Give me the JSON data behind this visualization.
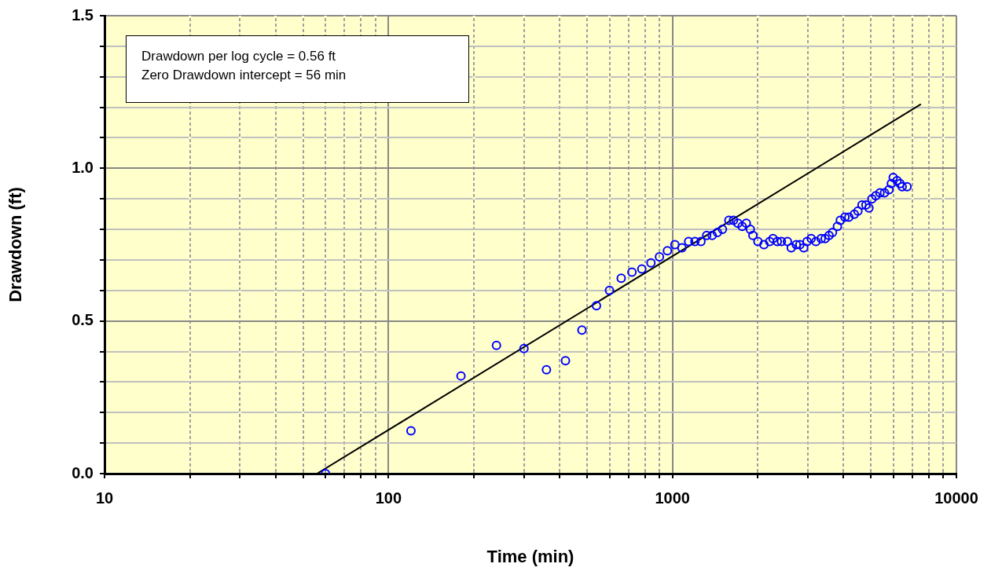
{
  "chart_data": {
    "type": "scatter",
    "xlabel": "Time (min)",
    "ylabel": "Drawdown (ft)",
    "annotations": [
      "Drawdown per log cycle = 0.56 ft",
      "Zero Drawdown intercept = 56 min"
    ],
    "log": "x",
    "grid": true,
    "legend": false,
    "xlim": [
      10,
      10000
    ],
    "ylim": [
      0,
      1.5
    ],
    "xticks": [
      10,
      {
        "value": 20,
        "label": null
      },
      {
        "value": 30,
        "label": null
      },
      {
        "value": 40,
        "label": null
      },
      {
        "value": 50,
        "label": null
      },
      {
        "value": 60,
        "label": null
      },
      {
        "value": 70,
        "label": null
      },
      {
        "value": 80,
        "label": null
      },
      {
        "value": 90,
        "label": null
      },
      100,
      {
        "value": 200,
        "label": null
      },
      {
        "value": 300,
        "label": null
      },
      {
        "value": 400,
        "label": null
      },
      {
        "value": 500,
        "label": null
      },
      {
        "value": 600,
        "label": null
      },
      {
        "value": 700,
        "label": null
      },
      {
        "value": 800,
        "label": null
      },
      {
        "value": 900,
        "label": null
      },
      1000,
      {
        "value": 2000,
        "label": null
      },
      {
        "value": 3000,
        "label": null
      },
      {
        "value": 4000,
        "label": null
      },
      {
        "value": 5000,
        "label": null
      },
      {
        "value": 6000,
        "label": null
      },
      {
        "value": 7000,
        "label": null
      },
      {
        "value": 8000,
        "label": null
      },
      {
        "value": 9000,
        "label": null
      },
      10000
    ],
    "yticks": [
      {
        "value": 0,
        "label": "0.0"
      },
      {
        "value": 0.1,
        "label": null
      },
      {
        "value": 0.2,
        "label": null
      },
      {
        "value": 0.3,
        "label": null
      },
      {
        "value": 0.4,
        "label": null
      },
      {
        "value": 0.5,
        "label": "0.5"
      },
      {
        "value": 0.6,
        "label": null
      },
      {
        "value": 0.7,
        "label": null
      },
      {
        "value": 0.8,
        "label": null
      },
      {
        "value": 0.9,
        "label": null
      },
      {
        "value": 1,
        "label": "1.0"
      },
      {
        "value": 1.1,
        "label": null
      },
      {
        "value": 1.2,
        "label": null
      },
      {
        "value": 1.3,
        "label": null
      },
      {
        "value": 1.4,
        "label": null
      },
      {
        "value": 1.5,
        "label": "1.5"
      }
    ],
    "series": [
      {
        "marker": "circle",
        "color": "#0000ff",
        "x": [
          60,
          120,
          180,
          240,
          300,
          360,
          420,
          480,
          540,
          600,
          660,
          720,
          780,
          840,
          900,
          960,
          1020,
          1080,
          1140,
          1200,
          1260,
          1320,
          1380,
          1440,
          1500,
          1580,
          1640,
          1700,
          1760,
          1820,
          1880,
          1920,
          2000,
          2100,
          2200,
          2260,
          2340,
          2420,
          2540,
          2620,
          2730,
          2810,
          2900,
          2980,
          3080,
          3200,
          3340,
          3450,
          3560,
          3660,
          3810,
          3900,
          4050,
          4180,
          4370,
          4500,
          4650,
          4800,
          4920,
          5040,
          5200,
          5380,
          5580,
          5790,
          5900,
          5990,
          6180,
          6330,
          6440,
          6700
        ],
        "values": [
          0.0,
          0.14,
          0.32,
          0.42,
          0.41,
          0.34,
          0.37,
          0.47,
          0.55,
          0.6,
          0.64,
          0.66,
          0.67,
          0.69,
          0.71,
          0.73,
          0.75,
          0.74,
          0.76,
          0.76,
          0.76,
          0.78,
          0.78,
          0.79,
          0.8,
          0.83,
          0.83,
          0.82,
          0.81,
          0.82,
          0.8,
          0.78,
          0.76,
          0.75,
          0.76,
          0.77,
          0.76,
          0.76,
          0.76,
          0.74,
          0.75,
          0.75,
          0.74,
          0.76,
          0.77,
          0.76,
          0.77,
          0.77,
          0.78,
          0.79,
          0.81,
          0.83,
          0.84,
          0.84,
          0.85,
          0.86,
          0.88,
          0.88,
          0.87,
          0.9,
          0.91,
          0.92,
          0.92,
          0.93,
          0.95,
          0.97,
          0.96,
          0.95,
          0.94,
          0.94
        ]
      },
      {
        "type": "line",
        "color": "#000000",
        "x": [
          56,
          7500
        ],
        "values": [
          0,
          1.21
        ]
      }
    ]
  }
}
